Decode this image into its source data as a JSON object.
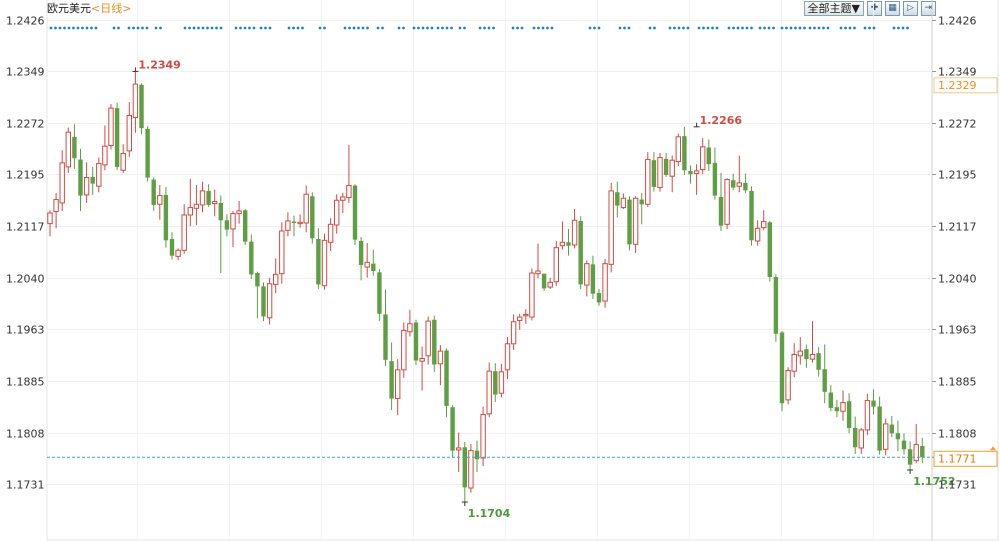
{
  "header": {
    "symbol": "欧元美元",
    "period_label": "<日线>",
    "theme_button": "全部主题▼",
    "icons": [
      "zoom-in-icon",
      "chart-layout-icon",
      "next-icon",
      "last-icon"
    ]
  },
  "colors": {
    "up": "#d24a43",
    "down": "#5e9e45",
    "dots": "#1a7fd1",
    "current_line": "#4aa6c8",
    "current_badge": "#f0a030",
    "high_label": "#d24a43",
    "low_label": "#4a9a38"
  },
  "chart_data": {
    "type": "candlestick",
    "title": "欧元美元 <日线>",
    "ylim": [
      1.167,
      1.2426
    ],
    "y_ticks": [
      "1.2426",
      "1.2349",
      "1.2272",
      "1.2195",
      "1.2117",
      "1.2040",
      "1.1963",
      "1.1885",
      "1.1808",
      "1.1731"
    ],
    "grid": true,
    "current_price": "1.1771",
    "reference_price": "1.2329",
    "annotations": [
      {
        "label": "1.2349",
        "kind": "high",
        "index": 14,
        "value": 1.2349
      },
      {
        "label": "1.2266",
        "kind": "high",
        "index": 106,
        "value": 1.2266
      },
      {
        "label": "1.1704",
        "kind": "low",
        "index": 68,
        "value": 1.1704
      },
      {
        "label": "1.1752",
        "kind": "low",
        "index": 141,
        "value": 1.1752
      }
    ],
    "candles": [
      [
        1.2121,
        1.2141,
        1.2102,
        1.2137
      ],
      [
        1.2139,
        1.2167,
        1.2114,
        1.2157
      ],
      [
        1.2152,
        1.2231,
        1.214,
        1.2212
      ],
      [
        1.2206,
        1.2265,
        1.2197,
        1.2258
      ],
      [
        1.2251,
        1.227,
        1.2203,
        1.2219
      ],
      [
        1.2217,
        1.2233,
        1.214,
        1.2163
      ],
      [
        1.2164,
        1.2213,
        1.2152,
        1.219
      ],
      [
        1.2191,
        1.2206,
        1.2164,
        1.2181
      ],
      [
        1.2177,
        1.222,
        1.2168,
        1.2211
      ],
      [
        1.2209,
        1.2268,
        1.2201,
        1.2237
      ],
      [
        1.2238,
        1.23,
        1.2232,
        1.2294
      ],
      [
        1.2294,
        1.2302,
        1.2201,
        1.2206
      ],
      [
        1.2201,
        1.224,
        1.2197,
        1.2226
      ],
      [
        1.223,
        1.2303,
        1.2221,
        1.2283
      ],
      [
        1.228,
        1.2349,
        1.2257,
        1.233
      ],
      [
        1.2329,
        1.2331,
        1.2255,
        1.2264
      ],
      [
        1.2263,
        1.2267,
        1.2184,
        1.219
      ],
      [
        1.2187,
        1.219,
        1.214,
        1.2149
      ],
      [
        1.215,
        1.2179,
        1.2127,
        1.2163
      ],
      [
        1.2164,
        1.2176,
        1.2085,
        1.2096
      ],
      [
        1.2098,
        1.2108,
        1.2067,
        1.2073
      ],
      [
        1.2072,
        1.2084,
        1.2066,
        1.2081
      ],
      [
        1.2081,
        1.215,
        1.2076,
        1.2134
      ],
      [
        1.2134,
        1.2188,
        1.2117,
        1.2145
      ],
      [
        1.2144,
        1.2179,
        1.2119,
        1.215
      ],
      [
        1.2149,
        1.2184,
        1.2138,
        1.217
      ],
      [
        1.217,
        1.218,
        1.2146,
        1.2149
      ],
      [
        1.2151,
        1.2172,
        1.2132,
        1.2154
      ],
      [
        1.2152,
        1.2163,
        1.2047,
        1.2126
      ],
      [
        1.2126,
        1.2135,
        1.2102,
        1.2112
      ],
      [
        1.2113,
        1.214,
        1.2086,
        1.2136
      ],
      [
        1.2136,
        1.2155,
        1.2121,
        1.214
      ],
      [
        1.2141,
        1.2143,
        1.2089,
        1.2094
      ],
      [
        1.2094,
        1.2105,
        1.2038,
        1.2045
      ],
      [
        1.2047,
        1.2049,
        1.1979,
        1.2027
      ],
      [
        1.2027,
        1.2033,
        1.1975,
        1.1982
      ],
      [
        1.198,
        1.204,
        1.197,
        1.2031
      ],
      [
        1.203,
        1.2069,
        1.2017,
        1.2045
      ],
      [
        1.2046,
        1.2123,
        1.2031,
        1.211
      ],
      [
        1.2111,
        1.2138,
        1.2102,
        1.2125
      ],
      [
        1.2124,
        1.2133,
        1.2102,
        1.2122
      ],
      [
        1.2121,
        1.2135,
        1.2115,
        1.2123
      ],
      [
        1.2122,
        1.2178,
        1.2108,
        1.2165
      ],
      [
        1.2162,
        1.2168,
        1.2091,
        1.2099
      ],
      [
        1.2098,
        1.2114,
        1.2023,
        1.203
      ],
      [
        1.2028,
        1.2106,
        1.2022,
        1.2096
      ],
      [
        1.2093,
        1.2129,
        1.208,
        1.212
      ],
      [
        1.2119,
        1.2165,
        1.2106,
        1.2156
      ],
      [
        1.2156,
        1.2167,
        1.2137,
        1.2161
      ],
      [
        1.216,
        1.2239,
        1.2152,
        1.2178
      ],
      [
        1.2178,
        1.218,
        1.2089,
        1.2097
      ],
      [
        1.2095,
        1.2101,
        1.2036,
        1.2059
      ],
      [
        1.2056,
        1.2092,
        1.204,
        1.2063
      ],
      [
        1.2061,
        1.2082,
        1.2043,
        1.205
      ],
      [
        1.2048,
        1.2053,
        1.1975,
        1.1986
      ],
      [
        1.1985,
        1.2022,
        1.1908,
        1.1917
      ],
      [
        1.1915,
        1.1943,
        1.1842,
        1.1859
      ],
      [
        1.1859,
        1.1918,
        1.1834,
        1.1902
      ],
      [
        1.1902,
        1.1973,
        1.189,
        1.1961
      ],
      [
        1.1959,
        1.1992,
        1.1952,
        1.1971
      ],
      [
        1.1973,
        1.1977,
        1.1909,
        1.1916
      ],
      [
        1.1915,
        1.1937,
        1.1871,
        1.1919
      ],
      [
        1.1923,
        1.1982,
        1.191,
        1.1975
      ],
      [
        1.1977,
        1.1983,
        1.1899,
        1.191
      ],
      [
        1.1911,
        1.1939,
        1.1879,
        1.193
      ],
      [
        1.1931,
        1.1934,
        1.1831,
        1.1848
      ],
      [
        1.1846,
        1.1849,
        1.177,
        1.1781
      ],
      [
        1.1782,
        1.1808,
        1.1749,
        1.1785
      ],
      [
        1.1786,
        1.1794,
        1.1704,
        1.1726
      ],
      [
        1.1725,
        1.1791,
        1.1718,
        1.1781
      ],
      [
        1.1781,
        1.1796,
        1.1749,
        1.1768
      ],
      [
        1.177,
        1.1847,
        1.1758,
        1.1835
      ],
      [
        1.1836,
        1.1913,
        1.1831,
        1.19
      ],
      [
        1.19,
        1.1912,
        1.1854,
        1.1865
      ],
      [
        1.1867,
        1.1911,
        1.1861,
        1.1899
      ],
      [
        1.1902,
        1.1951,
        1.1888,
        1.1941
      ],
      [
        1.1941,
        1.1985,
        1.1932,
        1.1974
      ],
      [
        1.1976,
        1.1986,
        1.1962,
        1.1981
      ],
      [
        1.1983,
        1.1993,
        1.1971,
        1.1985
      ],
      [
        1.1981,
        1.2054,
        1.1976,
        1.2047
      ],
      [
        1.2046,
        1.2091,
        1.2039,
        1.205
      ],
      [
        1.2046,
        1.2046,
        1.202,
        1.2024
      ],
      [
        1.2026,
        1.204,
        1.2023,
        1.2033
      ],
      [
        1.2034,
        1.2095,
        1.2028,
        1.2085
      ],
      [
        1.2088,
        1.2124,
        1.2082,
        1.2093
      ],
      [
        1.2093,
        1.2113,
        1.2073,
        1.2088
      ],
      [
        1.2089,
        1.2143,
        1.2084,
        1.2126
      ],
      [
        1.2125,
        1.2132,
        1.2023,
        1.203
      ],
      [
        1.2029,
        1.2066,
        1.2012,
        1.2061
      ],
      [
        1.206,
        1.2073,
        1.2008,
        1.2016
      ],
      [
        1.2017,
        1.2023,
        1.1998,
        1.2003
      ],
      [
        1.2005,
        1.2068,
        1.1995,
        1.2061
      ],
      [
        1.206,
        1.2182,
        1.2048,
        1.217
      ],
      [
        1.2168,
        1.2184,
        1.213,
        1.2148
      ],
      [
        1.2145,
        1.2166,
        1.2143,
        1.2159
      ],
      [
        1.2157,
        1.2162,
        1.2081,
        1.209
      ],
      [
        1.209,
        1.2162,
        1.2077,
        1.2159
      ],
      [
        1.2157,
        1.2167,
        1.212,
        1.215
      ],
      [
        1.215,
        1.2228,
        1.2146,
        1.2217
      ],
      [
        1.2216,
        1.2228,
        1.2169,
        1.2176
      ],
      [
        1.2175,
        1.2227,
        1.2169,
        1.222
      ],
      [
        1.2218,
        1.2227,
        1.2191,
        1.2194
      ],
      [
        1.2192,
        1.2223,
        1.2168,
        1.2216
      ],
      [
        1.2214,
        1.2256,
        1.2207,
        1.2251
      ],
      [
        1.2252,
        1.2266,
        1.2194,
        1.2201
      ],
      [
        1.22,
        1.2208,
        1.2181,
        1.2195
      ],
      [
        1.2196,
        1.221,
        1.2164,
        1.22
      ],
      [
        1.2202,
        1.2249,
        1.2195,
        1.2236
      ],
      [
        1.2235,
        1.2247,
        1.22,
        1.221
      ],
      [
        1.2212,
        1.2235,
        1.2157,
        1.2163
      ],
      [
        1.2161,
        1.2197,
        1.211,
        1.2118
      ],
      [
        1.212,
        1.2189,
        1.2113,
        1.2187
      ],
      [
        1.2186,
        1.2196,
        1.2171,
        1.2175
      ],
      [
        1.2177,
        1.2223,
        1.2168,
        1.2182
      ],
      [
        1.2182,
        1.2196,
        1.2167,
        1.2171
      ],
      [
        1.217,
        1.2177,
        1.2088,
        1.2096
      ],
      [
        1.2095,
        1.2126,
        1.2088,
        1.2114
      ],
      [
        1.2115,
        1.2141,
        1.2111,
        1.2124
      ],
      [
        1.2123,
        1.2125,
        1.2034,
        1.2041
      ],
      [
        1.2041,
        1.2045,
        1.1944,
        1.1956
      ],
      [
        1.1958,
        1.196,
        1.184,
        1.1852
      ],
      [
        1.1857,
        1.1906,
        1.185,
        1.1901
      ],
      [
        1.19,
        1.1942,
        1.1891,
        1.1925
      ],
      [
        1.1923,
        1.1951,
        1.191,
        1.193
      ],
      [
        1.1933,
        1.194,
        1.1905,
        1.1918
      ],
      [
        1.1918,
        1.1975,
        1.1913,
        1.1925
      ],
      [
        1.1927,
        1.1936,
        1.1892,
        1.1902
      ],
      [
        1.1903,
        1.194,
        1.1852,
        1.1869
      ],
      [
        1.1868,
        1.1879,
        1.184,
        1.1845
      ],
      [
        1.1846,
        1.1857,
        1.1831,
        1.184
      ],
      [
        1.184,
        1.1871,
        1.1826,
        1.1853
      ],
      [
        1.1855,
        1.1867,
        1.1807,
        1.1815
      ],
      [
        1.1815,
        1.1832,
        1.1776,
        1.1786
      ],
      [
        1.1785,
        1.1815,
        1.1776,
        1.1812
      ],
      [
        1.1812,
        1.1866,
        1.1804,
        1.1856
      ],
      [
        1.1856,
        1.1873,
        1.1835,
        1.1847
      ],
      [
        1.1847,
        1.1862,
        1.1775,
        1.1781
      ],
      [
        1.1783,
        1.1829,
        1.1774,
        1.1821
      ],
      [
        1.182,
        1.1833,
        1.1801,
        1.1807
      ],
      [
        1.1807,
        1.1826,
        1.178,
        1.1798
      ],
      [
        1.1796,
        1.1807,
        1.1775,
        1.1783
      ],
      [
        1.1783,
        1.1795,
        1.1752,
        1.176
      ],
      [
        1.1766,
        1.1821,
        1.1762,
        1.179
      ],
      [
        1.1788,
        1.18,
        1.1762,
        1.1771
      ]
    ]
  }
}
